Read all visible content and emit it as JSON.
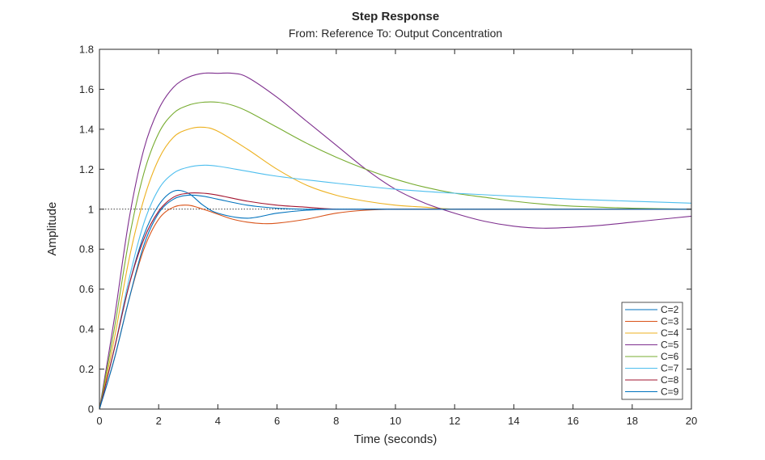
{
  "chart_data": {
    "type": "line",
    "title": "Step Response",
    "subtitle": "From: Reference  To: Output Concentration",
    "xlabel": "Time (seconds)",
    "ylabel": "Amplitude",
    "xlim": [
      0,
      20
    ],
    "ylim": [
      0,
      1.8
    ],
    "xticks": [
      "0",
      "2",
      "4",
      "6",
      "8",
      "10",
      "12",
      "14",
      "16",
      "18",
      "20"
    ],
    "yticks": [
      "0",
      "0.2",
      "0.4",
      "0.6",
      "0.8",
      "1",
      "1.2",
      "1.4",
      "1.6",
      "1.8"
    ],
    "grid": false,
    "reference_line": 1,
    "legend_position": "bottom-right",
    "series": [
      {
        "name": "C=2",
        "color": "#0072BD",
        "x": [
          0,
          0.5,
          1,
          1.5,
          2,
          2.5,
          3,
          3.5,
          4,
          5,
          6,
          7,
          8,
          10,
          12,
          14,
          16,
          18,
          20
        ],
        "y": [
          0,
          0.3,
          0.62,
          0.87,
          1.02,
          1.09,
          1.08,
          1.02,
          0.98,
          0.955,
          0.98,
          0.995,
          1,
          1,
          1,
          1,
          1,
          1,
          1
        ]
      },
      {
        "name": "C=3",
        "color": "#D95319",
        "x": [
          0,
          0.5,
          1,
          1.5,
          2,
          2.5,
          3,
          3.5,
          4,
          4.5,
          5,
          5.5,
          6,
          7,
          8,
          9,
          10,
          12,
          14,
          16,
          18,
          20
        ],
        "y": [
          0,
          0.25,
          0.55,
          0.8,
          0.95,
          1.01,
          1.02,
          1.0,
          0.975,
          0.95,
          0.935,
          0.928,
          0.93,
          0.95,
          0.98,
          0.995,
          1.0,
          1.0,
          1,
          1,
          1,
          1
        ]
      },
      {
        "name": "C=4",
        "color": "#EDB120",
        "x": [
          0,
          0.5,
          1,
          1.5,
          2,
          2.5,
          3,
          3.5,
          4,
          5,
          6,
          7,
          8,
          9,
          10,
          11,
          12,
          14,
          16,
          18,
          20
        ],
        "y": [
          0,
          0.35,
          0.75,
          1.05,
          1.25,
          1.36,
          1.4,
          1.41,
          1.39,
          1.3,
          1.2,
          1.12,
          1.07,
          1.04,
          1.02,
          1.01,
          1.0,
          1.0,
          1,
          1,
          1
        ]
      },
      {
        "name": "C=5",
        "color": "#7E2F8E",
        "x": [
          0,
          0.5,
          1,
          1.5,
          2,
          2.5,
          3,
          3.5,
          4,
          4.5,
          5,
          6,
          7,
          8,
          9,
          10,
          11,
          12,
          13,
          14,
          15,
          16,
          17,
          18,
          19,
          20
        ],
        "y": [
          0,
          0.45,
          0.95,
          1.3,
          1.5,
          1.61,
          1.66,
          1.68,
          1.68,
          1.68,
          1.66,
          1.56,
          1.44,
          1.32,
          1.2,
          1.1,
          1.03,
          0.98,
          0.94,
          0.915,
          0.905,
          0.91,
          0.92,
          0.935,
          0.95,
          0.965
        ]
      },
      {
        "name": "C=6",
        "color": "#77AC30",
        "x": [
          0,
          0.5,
          1,
          1.5,
          2,
          2.5,
          3,
          3.5,
          4,
          4.5,
          5,
          6,
          7,
          8,
          9,
          10,
          11,
          12,
          13,
          14,
          15,
          16,
          18,
          20
        ],
        "y": [
          0,
          0.4,
          0.85,
          1.18,
          1.38,
          1.48,
          1.52,
          1.535,
          1.535,
          1.52,
          1.49,
          1.41,
          1.33,
          1.26,
          1.2,
          1.15,
          1.11,
          1.08,
          1.06,
          1.04,
          1.025,
          1.015,
          1.005,
          1.0
        ]
      },
      {
        "name": "C=7",
        "color": "#4DBEEE",
        "x": [
          0,
          0.5,
          1,
          1.5,
          2,
          2.5,
          3,
          3.5,
          4,
          5,
          6,
          8,
          10,
          12,
          14,
          16,
          18,
          20
        ],
        "y": [
          0,
          0.3,
          0.65,
          0.93,
          1.1,
          1.18,
          1.21,
          1.22,
          1.215,
          1.19,
          1.165,
          1.13,
          1.1,
          1.08,
          1.065,
          1.05,
          1.04,
          1.03
        ]
      },
      {
        "name": "C=8",
        "color": "#A2142F",
        "x": [
          0,
          0.5,
          1,
          1.5,
          2,
          2.5,
          3,
          3.5,
          4,
          5,
          6,
          7,
          8,
          10,
          12,
          14,
          16,
          18,
          20
        ],
        "y": [
          0,
          0.3,
          0.62,
          0.85,
          0.99,
          1.06,
          1.08,
          1.08,
          1.07,
          1.04,
          1.02,
          1.01,
          1.0,
          1.0,
          1.0,
          1,
          1,
          1,
          1
        ]
      },
      {
        "name": "C=9",
        "color": "#0072BD",
        "x": [
          0,
          0.5,
          1,
          1.5,
          2,
          2.5,
          3,
          3.5,
          4,
          5,
          6,
          7,
          8,
          10,
          12,
          14,
          16,
          18,
          20
        ],
        "y": [
          0,
          0.25,
          0.55,
          0.82,
          0.98,
          1.05,
          1.07,
          1.065,
          1.05,
          1.02,
          1.005,
          1.0,
          1.0,
          1.0,
          1,
          1,
          1,
          1,
          1
        ]
      }
    ]
  }
}
